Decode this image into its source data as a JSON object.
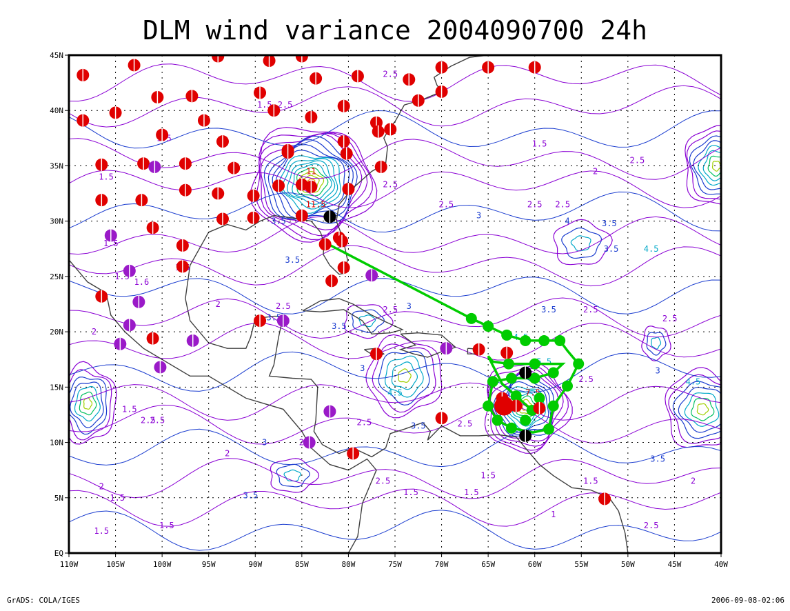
{
  "title": "DLM wind variance 2004090700 24h",
  "footer": {
    "left": "GrADS: COLA/IGES",
    "right": "2006-09-08-02:06"
  },
  "axes": {
    "lon_min": -110,
    "lon_max": -40,
    "lat_min": 0,
    "lat_max": 45,
    "x_ticks": [
      {
        "v": -110,
        "label": "110W"
      },
      {
        "v": -105,
        "label": "105W"
      },
      {
        "v": -100,
        "label": "100W"
      },
      {
        "v": -95,
        "label": "95W"
      },
      {
        "v": -90,
        "label": "90W"
      },
      {
        "v": -85,
        "label": "85W"
      },
      {
        "v": -80,
        "label": "80W"
      },
      {
        "v": -75,
        "label": "75W"
      },
      {
        "v": -70,
        "label": "70W"
      },
      {
        "v": -65,
        "label": "65W"
      },
      {
        "v": -60,
        "label": "60W"
      },
      {
        "v": -55,
        "label": "55W"
      },
      {
        "v": -50,
        "label": "50W"
      },
      {
        "v": -45,
        "label": "45W"
      },
      {
        "v": -40,
        "label": "40W"
      }
    ],
    "y_ticks": [
      {
        "v": 0,
        "label": "EQ"
      },
      {
        "v": 5,
        "label": "5N"
      },
      {
        "v": 10,
        "label": "10N"
      },
      {
        "v": 15,
        "label": "15N"
      },
      {
        "v": 20,
        "label": "20N"
      },
      {
        "v": 25,
        "label": "25N"
      },
      {
        "v": 30,
        "label": "30N"
      },
      {
        "v": 35,
        "label": "35N"
      },
      {
        "v": 40,
        "label": "40N"
      },
      {
        "v": 45,
        "label": "45N"
      }
    ],
    "grid": true
  },
  "colors": {
    "land": "#404040",
    "track": "#00cc00",
    "obs_red": "#e00000",
    "obs_purple": "#9a1ac8",
    "obs_black": "#000000",
    "contour_low": "#8a00d4",
    "contour_mid": "#1a3ccf",
    "contour_high": "#00a8c8"
  },
  "centers": [
    {
      "lon": -84,
      "lat": 33.5,
      "peak": 11.5,
      "rings": 16,
      "rx": 6.5,
      "ry": 5.0
    },
    {
      "lon": -61,
      "lat": 13.2,
      "peak": 8,
      "rings": 13,
      "rx": 4.5,
      "ry": 4.0
    },
    {
      "lon": -40.5,
      "lat": 35,
      "peak": 5,
      "rings": 8,
      "rx": 3.5,
      "ry": 3.5
    },
    {
      "lon": -42,
      "lat": 13,
      "peak": 4.5,
      "rings": 7,
      "rx": 4.0,
      "ry": 3.5
    },
    {
      "lon": -108,
      "lat": 13.5,
      "peak": 4.5,
      "rings": 7,
      "rx": 3.0,
      "ry": 3.5
    },
    {
      "lon": -74,
      "lat": 16,
      "peak": 4.5,
      "rings": 6,
      "rx": 4.0,
      "ry": 3.5
    },
    {
      "lon": -47,
      "lat": 19,
      "peak": 3,
      "rings": 3,
      "rx": 1.5,
      "ry": 1.5
    },
    {
      "lon": -78,
      "lat": 21,
      "peak": 3.5,
      "rings": 3,
      "rx": 2.5,
      "ry": 1.5
    },
    {
      "lon": -86,
      "lat": 7,
      "peak": 3.5,
      "rings": 3,
      "rx": 2.5,
      "ry": 1.5
    },
    {
      "lon": -55,
      "lat": 28,
      "peak": 3.5,
      "rings": 3,
      "rx": 3.0,
      "ry": 2.0
    }
  ],
  "contour_labels": [
    {
      "lon": -75.5,
      "lat": 43.3,
      "t": "2.5"
    },
    {
      "lon": -89,
      "lat": 40.5,
      "t": "1.5"
    },
    {
      "lon": -86.8,
      "lat": 40.5,
      "t": "2.5"
    },
    {
      "lon": -99.8,
      "lat": 37.5,
      "t": "1.5"
    },
    {
      "lon": -106,
      "lat": 34,
      "t": "1.5"
    },
    {
      "lon": -87.5,
      "lat": 30,
      "t": "3.5"
    },
    {
      "lon": -86,
      "lat": 26.5,
      "t": "3.5"
    },
    {
      "lon": -84,
      "lat": 34.5,
      "t": "11"
    },
    {
      "lon": -83.5,
      "lat": 31.5,
      "t": "11.5"
    },
    {
      "lon": -75.5,
      "lat": 33.3,
      "t": "2.5"
    },
    {
      "lon": -69.5,
      "lat": 31.5,
      "t": "2.5"
    },
    {
      "lon": -66,
      "lat": 30.5,
      "t": "3"
    },
    {
      "lon": -59.5,
      "lat": 37,
      "t": "1.5"
    },
    {
      "lon": -53.5,
      "lat": 34.5,
      "t": "2"
    },
    {
      "lon": -49,
      "lat": 35.5,
      "t": "2.5"
    },
    {
      "lon": -60,
      "lat": 31.5,
      "t": "2.5"
    },
    {
      "lon": -57,
      "lat": 31.5,
      "t": "2.5"
    },
    {
      "lon": -56.5,
      "lat": 30,
      "t": "4"
    },
    {
      "lon": -52,
      "lat": 29.8,
      "t": "3.5"
    },
    {
      "lon": -51.8,
      "lat": 27.5,
      "t": "3.5"
    },
    {
      "lon": -47.5,
      "lat": 27.5,
      "t": "4.5"
    },
    {
      "lon": -58.5,
      "lat": 22,
      "t": "3.5"
    },
    {
      "lon": -54,
      "lat": 22,
      "t": "2.5"
    },
    {
      "lon": -45.5,
      "lat": 21.2,
      "t": "2.5"
    },
    {
      "lon": -75.5,
      "lat": 22,
      "t": "2.5"
    },
    {
      "lon": -73.5,
      "lat": 22.3,
      "t": "3"
    },
    {
      "lon": -88,
      "lat": 21.3,
      "t": "3.5"
    },
    {
      "lon": -87,
      "lat": 22.3,
      "t": "2.5"
    },
    {
      "lon": -81,
      "lat": 20.5,
      "t": "3.5"
    },
    {
      "lon": -78.5,
      "lat": 16.7,
      "t": "3"
    },
    {
      "lon": -75,
      "lat": 14.5,
      "t": "4.5"
    },
    {
      "lon": -72.5,
      "lat": 11.5,
      "t": "3.5"
    },
    {
      "lon": -78.3,
      "lat": 11.8,
      "t": "2.5"
    },
    {
      "lon": -67.5,
      "lat": 11.7,
      "t": "2.5"
    },
    {
      "lon": -60.2,
      "lat": 14.5,
      "t": "7.5"
    },
    {
      "lon": -54.5,
      "lat": 15.7,
      "t": "2.5"
    },
    {
      "lon": -59,
      "lat": 17.3,
      "t": "5.5"
    },
    {
      "lon": -61.5,
      "lat": 19.5,
      "t": "4.5"
    },
    {
      "lon": -43,
      "lat": 15.5,
      "t": "4.5"
    },
    {
      "lon": -46.8,
      "lat": 16.5,
      "t": "3"
    },
    {
      "lon": -46.8,
      "lat": 8.5,
      "t": "3.5"
    },
    {
      "lon": -43,
      "lat": 6.5,
      "t": "2"
    },
    {
      "lon": -47.5,
      "lat": 2.5,
      "t": "2.5"
    },
    {
      "lon": -54,
      "lat": 6.5,
      "t": "1.5"
    },
    {
      "lon": -65,
      "lat": 7,
      "t": "1.5"
    },
    {
      "lon": -66.8,
      "lat": 5.5,
      "t": "1.5"
    },
    {
      "lon": -73.3,
      "lat": 5.5,
      "t": "1.5"
    },
    {
      "lon": -76.3,
      "lat": 6.5,
      "t": "2.5"
    },
    {
      "lon": -84.5,
      "lat": 10,
      "t": "2.5"
    },
    {
      "lon": -89,
      "lat": 10,
      "t": "3"
    },
    {
      "lon": -90.5,
      "lat": 5.2,
      "t": "3.5"
    },
    {
      "lon": -100.5,
      "lat": 12,
      "t": "2.5"
    },
    {
      "lon": -103.5,
      "lat": 13,
      "t": "1.5"
    },
    {
      "lon": -104.8,
      "lat": 5,
      "t": "1.5"
    },
    {
      "lon": -106.5,
      "lat": 6,
      "t": "2"
    },
    {
      "lon": -93,
      "lat": 9,
      "t": "2"
    },
    {
      "lon": -106.5,
      "lat": 2,
      "t": "1.5"
    },
    {
      "lon": -99.5,
      "lat": 2.5,
      "t": "1.5"
    },
    {
      "lon": -107.3,
      "lat": 20,
      "t": "2"
    },
    {
      "lon": -104.3,
      "lat": 25,
      "t": "1.5"
    },
    {
      "lon": -102.2,
      "lat": 24.5,
      "t": "1.6"
    },
    {
      "lon": -97.8,
      "lat": 25.8,
      "t": "1.5"
    },
    {
      "lon": -105.5,
      "lat": 28,
      "t": "1.5"
    },
    {
      "lon": -94,
      "lat": 22.5,
      "t": "2"
    },
    {
      "lon": -101.5,
      "lat": 12,
      "t": "2.5"
    },
    {
      "lon": -58,
      "lat": 3.5,
      "t": "1"
    }
  ],
  "land_paths": [
    "-110,26.5 -108,24.5 -106,23.5 -105.5,21.5 -104,20 -102,18.5 -100,17.5 -97,16 -95,16 -93,15 -91,14 -89,13.5 -87,13 -86,12 -85,11 -84,9.5 -82,8 -80,7.5 -78,8.5 -77,7.5 -78.5,4.5 -79,1.5 -80,0",
    "-97,26 -97.5,23 -97,21 -95,19 -93,18.5 -91,18.5 -90.5,19.5 -90,21.2 -88,21.4 -87,21.4 -87.5,19.5 -88,17 -88.5,16 -86,15.8 -84,15.7 -83.3,15 -83.5,12 -83.7,11 -82.8,9.8",
    "-97,26 -95,29 -93,29.7 -91,29.2 -89.5,30 -88,30.5 -86,30.3 -84,30 -83,29 -82.6,28 -82.7,27 -82,26 -81,25.2 -80.4,25.3 -80.1,26.5 -80.6,28.5 -81.3,30 -81,31.5 -79.5,33 -77.5,34.5 -76,35.2 -75.8,36.7 -76.2,37.5 -75.5,38.5 -75,39 -74,40.5 -72,41 -70,41.7 -70.5,42.3 -70.8,43 -69,44 -67,44.8 -65,45",
    "-84.9,21.9 -83,22.8 -81,23 -79.5,22.5 -77.5,21.5 -76,20.9 -74.2,20.2 -75.5,19.9 -77.5,19.8 -78.5,21 -80.5,22 -83,21.8 -84.9,21.9",
    "-74.4,19.8 -72.5,19.9 -70,19.7 -68.5,18.6 -70,18.2 -71.5,17.7 -73,18 -74.4,18.4 -72.8,18.8 -74.4,19.8",
    "-78.3,18.4 -77,18.5 -76.2,18 -77,17.7 -78.3,18.4",
    "-67.2,18.5 -65.6,18.4 -65.6,18 -67.2,18 -67.2,18.5",
    "-82.8,9.8 -81,9 -79.5,9.5 -77.5,8.7 -76,9.5 -75.5,10.8 -74,11.2 -72,11.8 -71.2,11 -71.5,10.2 -70,11.5 -68,10.6 -66,10.6 -64,10.7 -62,10.5 -61,9.5 -59.5,8 -58,7 -56,5.9 -54,5.7 -52,5 -51,3.8 -50.3,1.8 -50,0"
  ],
  "track": [
    {
      "lon": -81.9,
      "lat": 27.8
    },
    {
      "lon": -66.8,
      "lat": 21.2
    },
    {
      "lon": -65,
      "lat": 20.5
    },
    {
      "lon": -63,
      "lat": 19.7
    },
    {
      "lon": -61,
      "lat": 19.2
    },
    {
      "lon": -59,
      "lat": 19.2
    },
    {
      "lon": -57.3,
      "lat": 19.2
    },
    {
      "lon": -56.5,
      "lat": 18.3
    },
    {
      "lon": -55.3,
      "lat": 17.1
    },
    {
      "lon": -56.5,
      "lat": 15.1
    },
    {
      "lon": -58,
      "lat": 13.3
    },
    {
      "lon": -58.5,
      "lat": 11.2
    },
    {
      "lon": -60.2,
      "lat": 10.9
    },
    {
      "lon": -62.5,
      "lat": 11.3
    },
    {
      "lon": -64,
      "lat": 12
    },
    {
      "lon": -65,
      "lat": 13.3
    },
    {
      "lon": -64.5,
      "lat": 15.5
    },
    {
      "lon": -62.5,
      "lat": 15.8
    },
    {
      "lon": -60,
      "lat": 15.8
    },
    {
      "lon": -58,
      "lat": 16.3
    },
    {
      "lon": -57,
      "lat": 17.1
    },
    {
      "lon": -60,
      "lat": 17.1
    },
    {
      "lon": -62.8,
      "lat": 17.1
    },
    {
      "lon": -64.5,
      "lat": 17.3
    },
    {
      "lon": -65,
      "lat": 17.8
    },
    {
      "lon": -63.5,
      "lat": 15.3
    },
    {
      "lon": -62,
      "lat": 14.2
    },
    {
      "lon": -60.3,
      "lat": 12.9
    }
  ],
  "track_dots": [
    {
      "lon": -66.8,
      "lat": 21.2
    },
    {
      "lon": -65,
      "lat": 20.5
    },
    {
      "lon": -63,
      "lat": 19.7
    },
    {
      "lon": -61,
      "lat": 19.2
    },
    {
      "lon": -59,
      "lat": 19.2
    },
    {
      "lon": -57.3,
      "lat": 19.2
    },
    {
      "lon": -55.3,
      "lat": 17.1
    },
    {
      "lon": -56.5,
      "lat": 15.1
    },
    {
      "lon": -58,
      "lat": 13.3
    },
    {
      "lon": -58.5,
      "lat": 11.2
    },
    {
      "lon": -62.5,
      "lat": 11.3
    },
    {
      "lon": -64,
      "lat": 12
    },
    {
      "lon": -65,
      "lat": 13.3
    },
    {
      "lon": -64.5,
      "lat": 15.5
    },
    {
      "lon": -62.5,
      "lat": 15.8
    },
    {
      "lon": -60,
      "lat": 15.8
    },
    {
      "lon": -58,
      "lat": 16.3
    },
    {
      "lon": -60,
      "lat": 17.1
    },
    {
      "lon": -62.8,
      "lat": 17.1
    },
    {
      "lon": -62,
      "lat": 14.2
    },
    {
      "lon": -60.3,
      "lat": 12.9
    },
    {
      "lon": -59.5,
      "lat": 14.0
    },
    {
      "lon": -61,
      "lat": 12.0
    }
  ],
  "stations": [
    {
      "lon": -108.5,
      "lat": 43.2,
      "c": "r"
    },
    {
      "lon": -103,
      "lat": 44.1,
      "c": "r"
    },
    {
      "lon": -94,
      "lat": 44.9,
      "c": "r"
    },
    {
      "lon": -88.5,
      "lat": 44.5,
      "c": "r"
    },
    {
      "lon": -85,
      "lat": 44.9,
      "c": "r"
    },
    {
      "lon": -83.5,
      "lat": 42.9,
      "c": "r"
    },
    {
      "lon": -79,
      "lat": 43.1,
      "c": "r"
    },
    {
      "lon": -73.5,
      "lat": 42.8,
      "c": "r"
    },
    {
      "lon": -70,
      "lat": 43.9,
      "c": "r"
    },
    {
      "lon": -65,
      "lat": 43.9,
      "c": "r"
    },
    {
      "lon": -60,
      "lat": 43.9,
      "c": "r"
    },
    {
      "lon": -70,
      "lat": 41.7,
      "c": "r"
    },
    {
      "lon": -72.5,
      "lat": 40.9,
      "c": "r"
    },
    {
      "lon": -100.5,
      "lat": 41.2,
      "c": "r"
    },
    {
      "lon": -96.8,
      "lat": 41.3,
      "c": "r"
    },
    {
      "lon": -89.5,
      "lat": 41.6,
      "c": "r"
    },
    {
      "lon": -88,
      "lat": 40.0,
      "c": "r"
    },
    {
      "lon": -84,
      "lat": 39.4,
      "c": "r"
    },
    {
      "lon": -80.5,
      "lat": 40.4,
      "c": "r"
    },
    {
      "lon": -105,
      "lat": 39.8,
      "c": "r"
    },
    {
      "lon": -108.5,
      "lat": 39.1,
      "c": "r"
    },
    {
      "lon": -95.5,
      "lat": 39.1,
      "c": "r"
    },
    {
      "lon": -77,
      "lat": 38.9,
      "c": "r"
    },
    {
      "lon": -75.5,
      "lat": 38.3,
      "c": "r"
    },
    {
      "lon": -100,
      "lat": 37.8,
      "c": "r"
    },
    {
      "lon": -93.5,
      "lat": 37.2,
      "c": "r"
    },
    {
      "lon": -80.5,
      "lat": 37.2,
      "c": "r"
    },
    {
      "lon": -80.2,
      "lat": 36.1,
      "c": "r"
    },
    {
      "lon": -86.5,
      "lat": 36.4,
      "c": "r"
    },
    {
      "lon": -106.5,
      "lat": 35.1,
      "c": "r"
    },
    {
      "lon": -102,
      "lat": 35.2,
      "c": "r"
    },
    {
      "lon": -97.5,
      "lat": 35.2,
      "c": "r"
    },
    {
      "lon": -92.3,
      "lat": 34.8,
      "c": "r"
    },
    {
      "lon": -76.5,
      "lat": 34.9,
      "c": "r"
    },
    {
      "lon": -97.5,
      "lat": 32.8,
      "c": "r"
    },
    {
      "lon": -94,
      "lat": 32.5,
      "c": "r"
    },
    {
      "lon": -90.2,
      "lat": 32.3,
      "c": "r"
    },
    {
      "lon": -87.5,
      "lat": 33.2,
      "c": "r"
    },
    {
      "lon": -85,
      "lat": 33.3,
      "c": "r"
    },
    {
      "lon": -80,
      "lat": 32.9,
      "c": "r"
    },
    {
      "lon": -84,
      "lat": 33.1,
      "c": "r"
    },
    {
      "lon": -106.5,
      "lat": 31.9,
      "c": "r"
    },
    {
      "lon": -102.2,
      "lat": 31.9,
      "c": "r"
    },
    {
      "lon": -93.5,
      "lat": 30.2,
      "c": "r"
    },
    {
      "lon": -90.2,
      "lat": 30.3,
      "c": "r"
    },
    {
      "lon": -85,
      "lat": 30.5,
      "c": "r"
    },
    {
      "lon": -101,
      "lat": 29.4,
      "c": "r"
    },
    {
      "lon": -81,
      "lat": 28.5,
      "c": "r"
    },
    {
      "lon": -82.5,
      "lat": 27.9,
      "c": "r"
    },
    {
      "lon": -97.8,
      "lat": 27.8,
      "c": "r"
    },
    {
      "lon": -97.8,
      "lat": 25.9,
      "c": "r"
    },
    {
      "lon": -80.5,
      "lat": 25.8,
      "c": "r"
    },
    {
      "lon": -81.8,
      "lat": 24.6,
      "c": "r"
    },
    {
      "lon": -106.5,
      "lat": 23.2,
      "c": "r"
    },
    {
      "lon": -89.5,
      "lat": 21,
      "c": "r"
    },
    {
      "lon": -101,
      "lat": 19.4,
      "c": "r"
    },
    {
      "lon": -77,
      "lat": 18,
      "c": "r"
    },
    {
      "lon": -66,
      "lat": 18.4,
      "c": "r"
    },
    {
      "lon": -63,
      "lat": 18.1,
      "c": "r"
    },
    {
      "lon": -62,
      "lat": 13.3,
      "c": "r"
    },
    {
      "lon": -59.5,
      "lat": 13.1,
      "c": "r"
    },
    {
      "lon": -70,
      "lat": 12.2,
      "c": "r"
    },
    {
      "lon": -79.5,
      "lat": 9.0,
      "c": "r"
    },
    {
      "lon": -52.5,
      "lat": 4.9,
      "c": "r"
    },
    {
      "lon": -63.5,
      "lat": 14.0,
      "c": "r"
    },
    {
      "lon": -86.5,
      "lat": 36.2,
      "c": "r"
    },
    {
      "lon": -76.8,
      "lat": 38.1,
      "c": "r"
    },
    {
      "lon": -80.7,
      "lat": 28.2,
      "c": "r"
    },
    {
      "lon": -100.8,
      "lat": 34.9,
      "c": "p"
    },
    {
      "lon": -105.5,
      "lat": 28.7,
      "c": "p"
    },
    {
      "lon": -103.5,
      "lat": 25.5,
      "c": "p"
    },
    {
      "lon": -102.5,
      "lat": 22.7,
      "c": "p"
    },
    {
      "lon": -103.5,
      "lat": 20.6,
      "c": "p"
    },
    {
      "lon": -104.5,
      "lat": 18.9,
      "c": "p"
    },
    {
      "lon": -96.7,
      "lat": 19.2,
      "c": "p"
    },
    {
      "lon": -100.2,
      "lat": 16.8,
      "c": "p"
    },
    {
      "lon": -87,
      "lat": 21,
      "c": "p"
    },
    {
      "lon": -77.5,
      "lat": 25.1,
      "c": "p"
    },
    {
      "lon": -69.5,
      "lat": 18.5,
      "c": "p"
    },
    {
      "lon": -82,
      "lat": 12.8,
      "c": "p"
    },
    {
      "lon": -84.2,
      "lat": 10,
      "c": "p"
    },
    {
      "lon": -82,
      "lat": 30.4,
      "c": "k"
    },
    {
      "lon": -61,
      "lat": 16.3,
      "c": "k"
    },
    {
      "lon": -61,
      "lat": 10.6,
      "c": "k"
    }
  ]
}
